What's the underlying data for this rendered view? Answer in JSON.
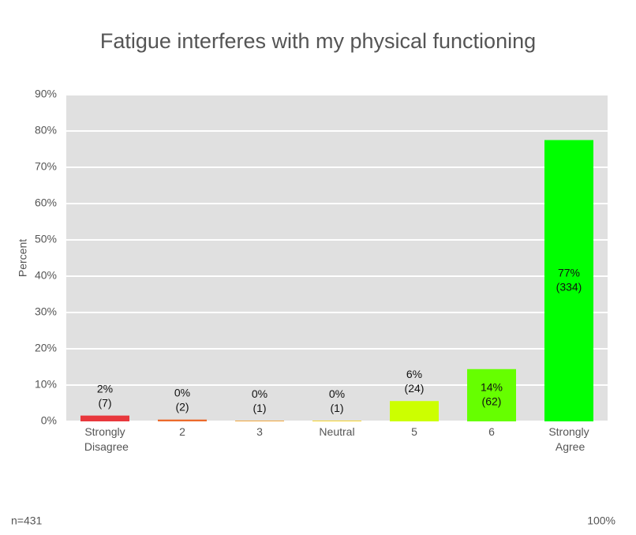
{
  "chart_data": {
    "type": "bar",
    "title": "Fatigue interferes with my physical functioning",
    "y_label": "Percent",
    "categories": [
      "Strongly Disagree",
      "2",
      "3",
      "Neutral",
      "5",
      "6",
      "Strongly Agree"
    ],
    "values": [
      1.6,
      0.5,
      0.2,
      0.2,
      5.6,
      14.4,
      77.5
    ],
    "value_labels": [
      "2%",
      "0%",
      "0%",
      "0%",
      "6%",
      "14%",
      "77%"
    ],
    "count_labels": [
      "(7)",
      "(2)",
      "(1)",
      "(1)",
      "(24)",
      "(62)",
      "(334)"
    ],
    "colors": [
      "#e8383d",
      "#ec6a2c",
      "#f0a030",
      "#f5d020",
      "#ccff00",
      "#66ff00",
      "#00ff00"
    ],
    "ylim": [
      0,
      90
    ],
    "yticks": [
      {
        "value": 0,
        "label": "0%"
      },
      {
        "value": 10,
        "label": "10%"
      },
      {
        "value": 20,
        "label": "20%"
      },
      {
        "value": 30,
        "label": "30%"
      },
      {
        "value": 40,
        "label": "40%"
      },
      {
        "value": 50,
        "label": "50%"
      },
      {
        "value": 60,
        "label": "60%"
      },
      {
        "value": 70,
        "label": "70%"
      },
      {
        "value": 80,
        "label": "80%"
      },
      {
        "value": 90,
        "label": "90%"
      }
    ],
    "grid": true,
    "footer_left": "n=431",
    "footer_right": "100%"
  }
}
